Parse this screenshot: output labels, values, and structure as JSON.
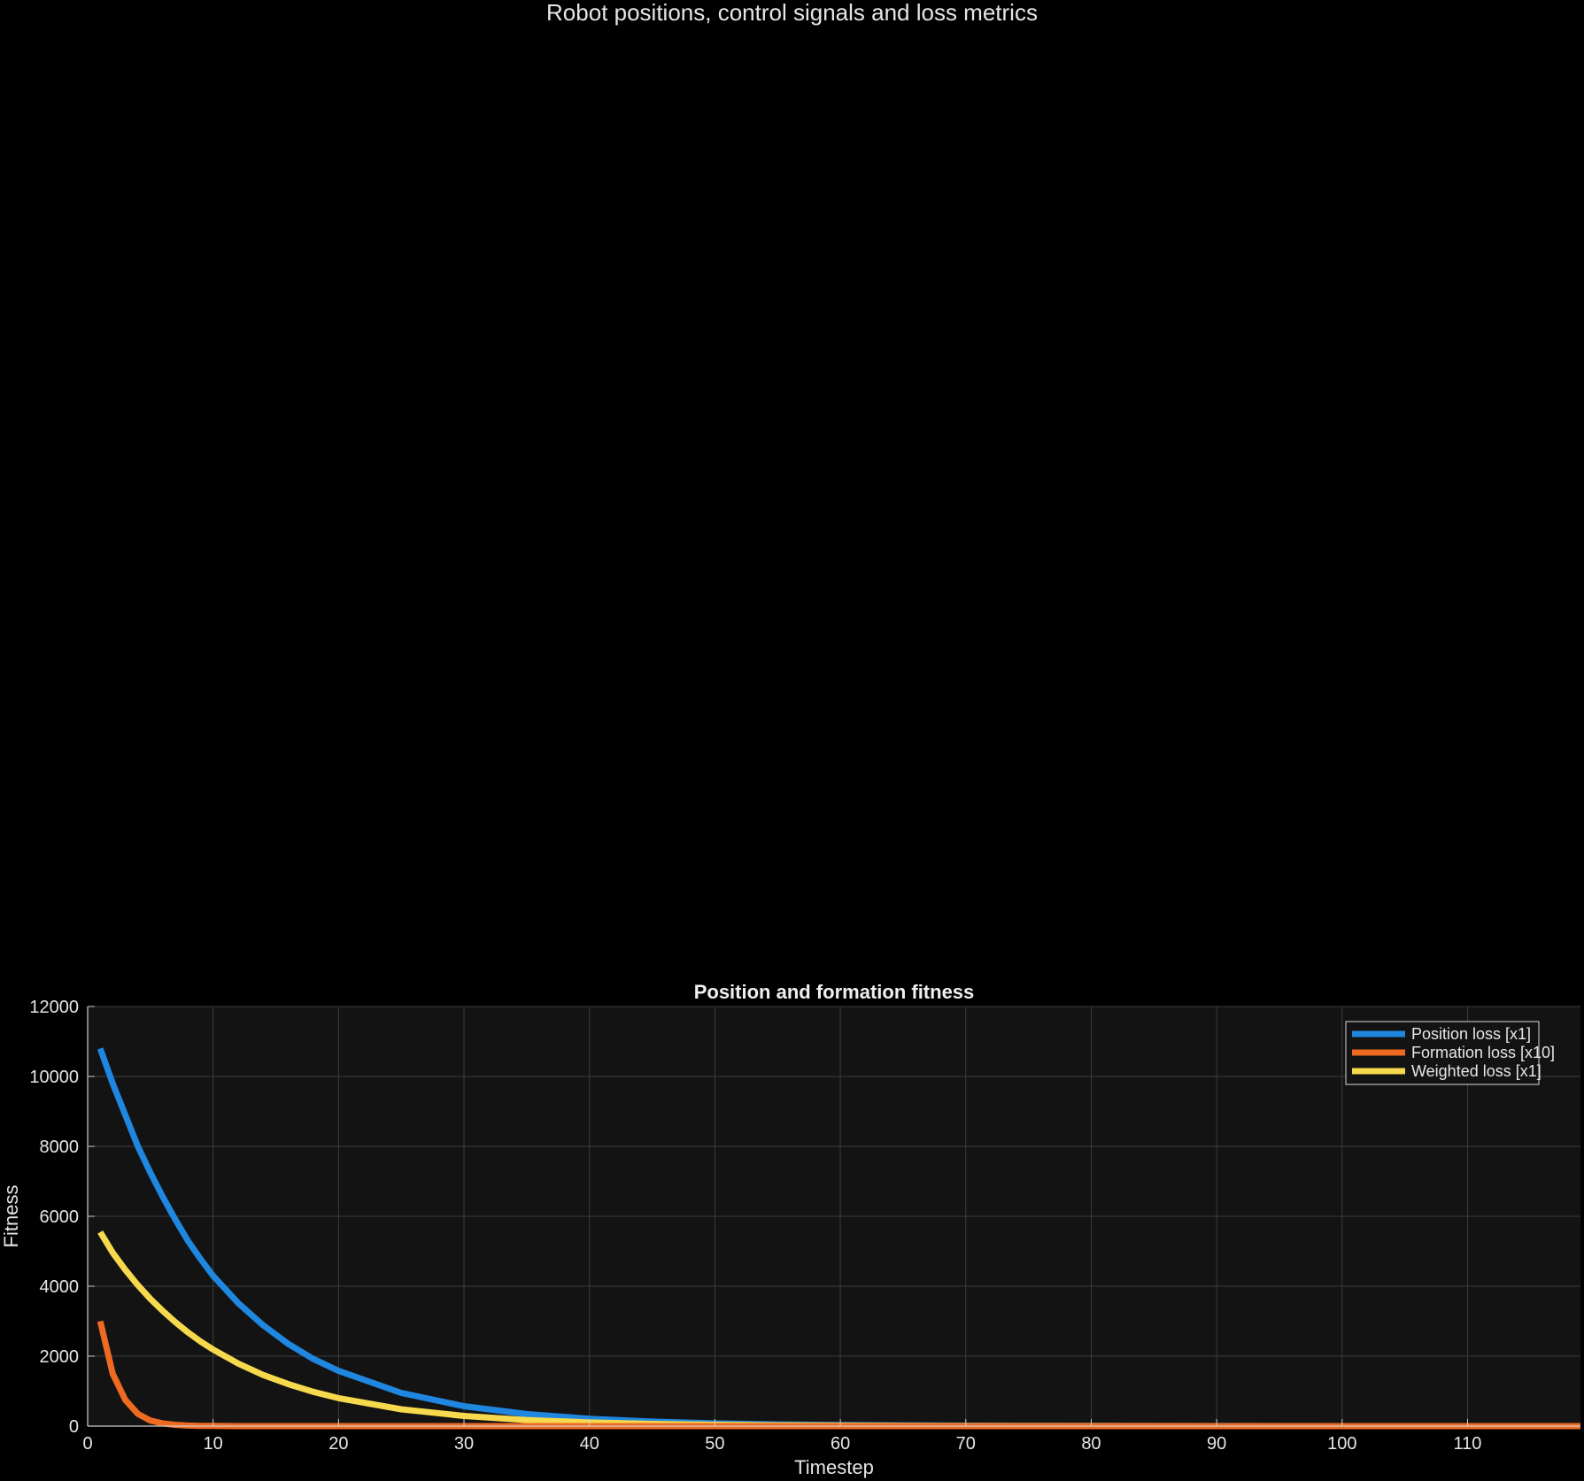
{
  "figure": {
    "title": "Robot positions, control signals and loss metrics"
  },
  "colors": {
    "background": "#000000",
    "axes_background": "#131313",
    "grid": "#3c3c3c",
    "axis_line": "#cfcfcf",
    "text": "#e6e6e6"
  },
  "chart_data": {
    "type": "line",
    "title": "Position and formation fitness",
    "xlabel": "Timestep",
    "ylabel": "Fitness",
    "xlim": [
      0,
      119
    ],
    "ylim": [
      0,
      12000
    ],
    "xticks": [
      0,
      10,
      20,
      30,
      40,
      50,
      60,
      70,
      80,
      90,
      100,
      110
    ],
    "yticks": [
      0,
      2000,
      4000,
      6000,
      8000,
      10000,
      12000
    ],
    "grid": true,
    "legend_position": "top-right",
    "series": [
      {
        "name": "Position loss [x1]",
        "color": "#1f87e0",
        "x": [
          1,
          2,
          3,
          4,
          5,
          6,
          7,
          8,
          9,
          10,
          12,
          14,
          16,
          18,
          20,
          25,
          30,
          35,
          40,
          45,
          50,
          55,
          60,
          70,
          80,
          90,
          100,
          110,
          119
        ],
        "y": [
          10800,
          9800,
          8900,
          8000,
          7250,
          6550,
          5900,
          5300,
          4780,
          4300,
          3520,
          2880,
          2350,
          1920,
          1580,
          950,
          570,
          345,
          210,
          128,
          78,
          48,
          30,
          12,
          5,
          2,
          1,
          0,
          0
        ]
      },
      {
        "name": "Formation loss [x10]",
        "color": "#ee6a21",
        "x": [
          1,
          2,
          3,
          4,
          5,
          6,
          7,
          8,
          9,
          10,
          12,
          15,
          20,
          30,
          40,
          50,
          60,
          70,
          80,
          90,
          100,
          110,
          119
        ],
        "y": [
          3000,
          1500,
          750,
          350,
          160,
          75,
          35,
          15,
          8,
          4,
          1,
          0,
          0,
          0,
          0,
          0,
          0,
          0,
          0,
          0,
          0,
          0,
          0
        ]
      },
      {
        "name": "Weighted loss [x1]",
        "color": "#f6d94c",
        "x": [
          1,
          2,
          3,
          4,
          5,
          6,
          7,
          8,
          9,
          10,
          12,
          14,
          16,
          18,
          20,
          25,
          30,
          35,
          40,
          45,
          50,
          55,
          60,
          70,
          80,
          90,
          100,
          110,
          119
        ],
        "y": [
          5550,
          4960,
          4470,
          4030,
          3640,
          3290,
          2970,
          2680,
          2420,
          2190,
          1790,
          1460,
          1200,
          980,
          800,
          480,
          290,
          175,
          105,
          64,
          39,
          24,
          15,
          6,
          2,
          1,
          0,
          0,
          0
        ]
      }
    ]
  }
}
